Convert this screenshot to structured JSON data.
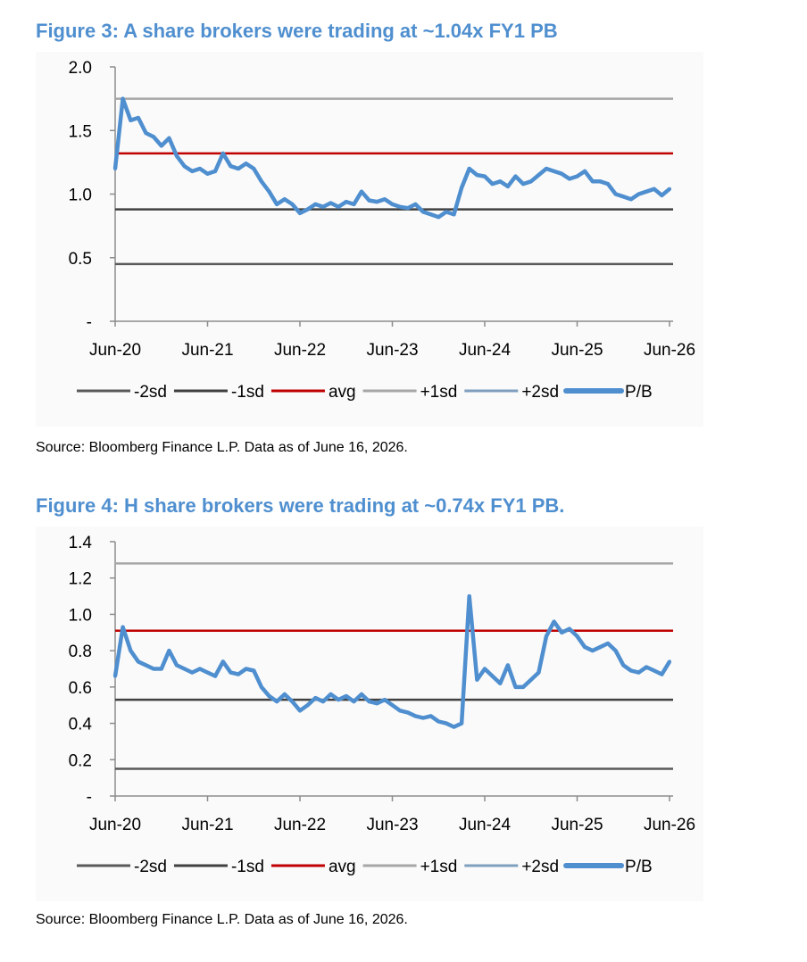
{
  "figures": [
    {
      "title": "Figure 3: A share brokers were trading at ~1.04x FY1 PB",
      "source": "Source: Bloomberg Finance L.P. Data as of June 16, 2026.",
      "chart_data": {
        "type": "line",
        "title": "Figure 3: A share brokers were trading at ~1.04x FY1 PB",
        "xlabel": "",
        "ylabel": "",
        "x_range": [
          "2020-06",
          "2026-06"
        ],
        "x_ticks": [
          "Jun-20",
          "Jun-21",
          "Jun-22",
          "Jun-23",
          "Jun-24",
          "Jun-25",
          "Jun-26"
        ],
        "y_ticks": [
          "-",
          "0.5",
          "1.0",
          "1.5",
          "2.0"
        ],
        "ylim": [
          0,
          2.0
        ],
        "grid": false,
        "legend_position": "bottom",
        "series": [
          {
            "name": "-2sd",
            "color": "#595959",
            "values": [
              0.45,
              0.45
            ]
          },
          {
            "name": "-1sd",
            "color": "#404040",
            "values": [
              0.88,
              0.88
            ]
          },
          {
            "name": "avg",
            "color": "#c00000",
            "values": [
              1.32,
              1.32
            ]
          },
          {
            "name": "+1sd",
            "color": "#a6a6a6",
            "values": [
              1.75,
              1.75
            ]
          },
          {
            "name": "+2sd",
            "color": "#7f9fbf",
            "values": []
          },
          {
            "name": "P/B",
            "color": "#4f8fcf",
            "x": [
              "2020-06",
              "2020-07",
              "2020-08",
              "2020-09",
              "2020-10",
              "2020-11",
              "2020-12",
              "2021-01",
              "2021-02",
              "2021-03",
              "2021-04",
              "2021-05",
              "2021-06",
              "2021-07",
              "2021-08",
              "2021-09",
              "2021-10",
              "2021-11",
              "2021-12",
              "2022-01",
              "2022-02",
              "2022-03",
              "2022-04",
              "2022-05",
              "2022-06",
              "2022-07",
              "2022-08",
              "2022-09",
              "2022-10",
              "2022-11",
              "2022-12",
              "2023-01",
              "2023-02",
              "2023-03",
              "2023-04",
              "2023-05",
              "2023-06",
              "2023-07",
              "2023-08",
              "2023-09",
              "2023-10",
              "2023-11",
              "2023-12",
              "2024-01",
              "2024-02",
              "2024-03",
              "2024-04",
              "2024-05",
              "2024-06",
              "2024-07",
              "2024-08",
              "2024-09",
              "2024-10",
              "2024-11",
              "2024-12",
              "2025-01",
              "2025-02",
              "2025-03",
              "2025-04",
              "2025-05",
              "2025-06",
              "2025-07",
              "2025-08",
              "2025-09",
              "2025-10",
              "2025-11",
              "2025-12",
              "2026-01",
              "2026-02",
              "2026-03",
              "2026-04",
              "2026-05",
              "2026-06"
            ],
            "values": [
              1.2,
              1.75,
              1.58,
              1.6,
              1.48,
              1.45,
              1.38,
              1.44,
              1.3,
              1.22,
              1.18,
              1.2,
              1.16,
              1.18,
              1.32,
              1.22,
              1.2,
              1.24,
              1.2,
              1.1,
              1.02,
              0.92,
              0.96,
              0.92,
              0.85,
              0.88,
              0.92,
              0.9,
              0.93,
              0.9,
              0.94,
              0.92,
              1.02,
              0.95,
              0.94,
              0.96,
              0.92,
              0.9,
              0.89,
              0.92,
              0.86,
              0.84,
              0.82,
              0.86,
              0.84,
              1.05,
              1.2,
              1.15,
              1.14,
              1.08,
              1.1,
              1.06,
              1.14,
              1.08,
              1.1,
              1.15,
              1.2,
              1.18,
              1.16,
              1.12,
              1.14,
              1.18,
              1.1,
              1.1,
              1.08,
              1.0,
              0.98,
              0.96,
              1.0,
              1.02,
              1.04,
              0.99,
              1.04
            ]
          }
        ]
      },
      "legend": [
        {
          "label": "-2sd",
          "color": "#595959",
          "width": 3
        },
        {
          "label": "-1sd",
          "color": "#404040",
          "width": 3
        },
        {
          "label": "avg",
          "color": "#c00000",
          "width": 3
        },
        {
          "label": "+1sd",
          "color": "#a6a6a6",
          "width": 3
        },
        {
          "label": "+2sd",
          "color": "#7f9fbf",
          "width": 3
        },
        {
          "label": "P/B",
          "color": "#4f8fcf",
          "width": 6
        }
      ]
    },
    {
      "title": "Figure 4: H share brokers were trading at ~0.74x FY1 PB.",
      "source": "Source: Bloomberg Finance L.P. Data as of June 16, 2026.",
      "chart_data": {
        "type": "line",
        "title": "Figure 4: H share brokers were trading at ~0.74x FY1 PB.",
        "xlabel": "",
        "ylabel": "",
        "x_range": [
          "2020-06",
          "2026-06"
        ],
        "x_ticks": [
          "Jun-20",
          "Jun-21",
          "Jun-22",
          "Jun-23",
          "Jun-24",
          "Jun-25",
          "Jun-26"
        ],
        "y_ticks": [
          "-",
          "0.2",
          "0.4",
          "0.6",
          "0.8",
          "1.0",
          "1.2",
          "1.4"
        ],
        "ylim": [
          0,
          1.4
        ],
        "grid": false,
        "legend_position": "bottom",
        "series": [
          {
            "name": "-2sd",
            "color": "#595959",
            "values": [
              0.15,
              0.15
            ]
          },
          {
            "name": "-1sd",
            "color": "#404040",
            "values": [
              0.53,
              0.53
            ]
          },
          {
            "name": "avg",
            "color": "#c00000",
            "values": [
              0.91,
              0.91
            ]
          },
          {
            "name": "+1sd",
            "color": "#a6a6a6",
            "values": [
              1.28,
              1.28
            ]
          },
          {
            "name": "+2sd",
            "color": "#7f9fbf",
            "values": []
          },
          {
            "name": "P/B",
            "color": "#4f8fcf",
            "x": [
              "2020-06",
              "2020-07",
              "2020-08",
              "2020-09",
              "2020-10",
              "2020-11",
              "2020-12",
              "2021-01",
              "2021-02",
              "2021-03",
              "2021-04",
              "2021-05",
              "2021-06",
              "2021-07",
              "2021-08",
              "2021-09",
              "2021-10",
              "2021-11",
              "2021-12",
              "2022-01",
              "2022-02",
              "2022-03",
              "2022-04",
              "2022-05",
              "2022-06",
              "2022-07",
              "2022-08",
              "2022-09",
              "2022-10",
              "2022-11",
              "2022-12",
              "2023-01",
              "2023-02",
              "2023-03",
              "2023-04",
              "2023-05",
              "2023-06",
              "2023-07",
              "2023-08",
              "2023-09",
              "2023-10",
              "2023-11",
              "2023-12",
              "2024-01",
              "2024-02",
              "2024-03",
              "2024-04",
              "2024-05",
              "2024-06",
              "2024-07",
              "2024-08",
              "2024-09",
              "2024-10",
              "2024-11",
              "2024-12",
              "2025-01",
              "2025-02",
              "2025-03",
              "2025-04",
              "2025-05",
              "2025-06",
              "2025-07",
              "2025-08",
              "2025-09",
              "2025-10",
              "2025-11",
              "2025-12",
              "2026-01",
              "2026-02",
              "2026-03",
              "2026-04",
              "2026-05",
              "2026-06"
            ],
            "values": [
              0.66,
              0.93,
              0.8,
              0.74,
              0.72,
              0.7,
              0.7,
              0.8,
              0.72,
              0.7,
              0.68,
              0.7,
              0.68,
              0.66,
              0.74,
              0.68,
              0.67,
              0.7,
              0.69,
              0.6,
              0.55,
              0.52,
              0.56,
              0.52,
              0.47,
              0.5,
              0.54,
              0.52,
              0.56,
              0.53,
              0.55,
              0.52,
              0.56,
              0.52,
              0.51,
              0.53,
              0.5,
              0.47,
              0.46,
              0.44,
              0.43,
              0.44,
              0.41,
              0.4,
              0.38,
              0.4,
              1.1,
              0.64,
              0.7,
              0.66,
              0.62,
              0.72,
              0.6,
              0.6,
              0.64,
              0.68,
              0.88,
              0.96,
              0.9,
              0.92,
              0.88,
              0.82,
              0.8,
              0.82,
              0.84,
              0.8,
              0.72,
              0.69,
              0.68,
              0.71,
              0.69,
              0.67,
              0.74
            ]
          }
        ]
      },
      "legend": [
        {
          "label": "-2sd",
          "color": "#595959",
          "width": 3
        },
        {
          "label": "-1sd",
          "color": "#404040",
          "width": 3
        },
        {
          "label": "avg",
          "color": "#c00000",
          "width": 3
        },
        {
          "label": "+1sd",
          "color": "#a6a6a6",
          "width": 3
        },
        {
          "label": "+2sd",
          "color": "#7f9fbf",
          "width": 3
        },
        {
          "label": "P/B",
          "color": "#4f8fcf",
          "width": 6
        }
      ]
    }
  ]
}
